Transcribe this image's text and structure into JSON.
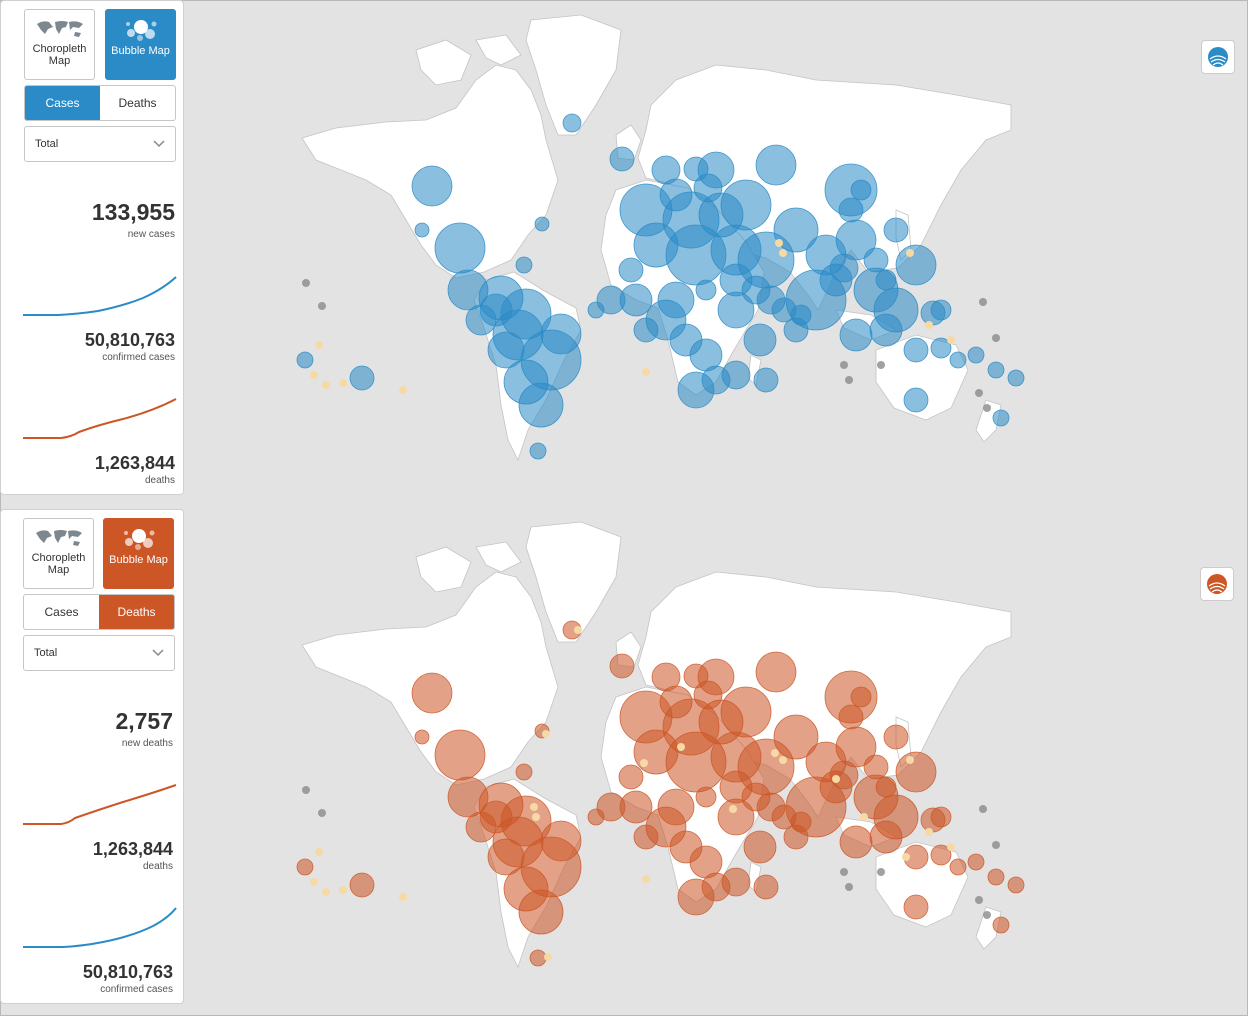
{
  "colors": {
    "blue": "#2a8bc6",
    "orange": "#cc5626",
    "small_bubble": "#f7d9a6",
    "grey_bubble": "#8a8a8a",
    "land": "#ffffff",
    "background": "#e3e3e3"
  },
  "top_panel": {
    "map_buttons": {
      "choropleth": "Choropleth Map",
      "bubble": "Bubble Map",
      "active": "bubble"
    },
    "metric_tabs": {
      "cases": "Cases",
      "deaths": "Deaths",
      "active": "cases"
    },
    "period_select": "Total",
    "stats": [
      {
        "value": "133,955",
        "label": "new cases"
      },
      {
        "value": "50,810,763",
        "label": "confirmed cases"
      },
      {
        "value": "1,263,844",
        "label": "deaths"
      }
    ]
  },
  "bottom_panel": {
    "map_buttons": {
      "choropleth": "Choropleth Map",
      "bubble": "Bubble Map",
      "active": "bubble"
    },
    "metric_tabs": {
      "cases": "Cases",
      "deaths": "Deaths",
      "active": "deaths"
    },
    "period_select": "Total",
    "stats": [
      {
        "value": "2,757",
        "label": "new deaths"
      },
      {
        "value": "1,263,844",
        "label": "deaths"
      },
      {
        "value": "50,810,763",
        "label": "confirmed cases"
      }
    ]
  },
  "icons": {
    "map_thumbnail": "world-map-icon",
    "bubble_thumbnail": "bubbles-icon",
    "dropdown": "chevron-down-icon",
    "legend": "bubble-legend-icon"
  }
}
